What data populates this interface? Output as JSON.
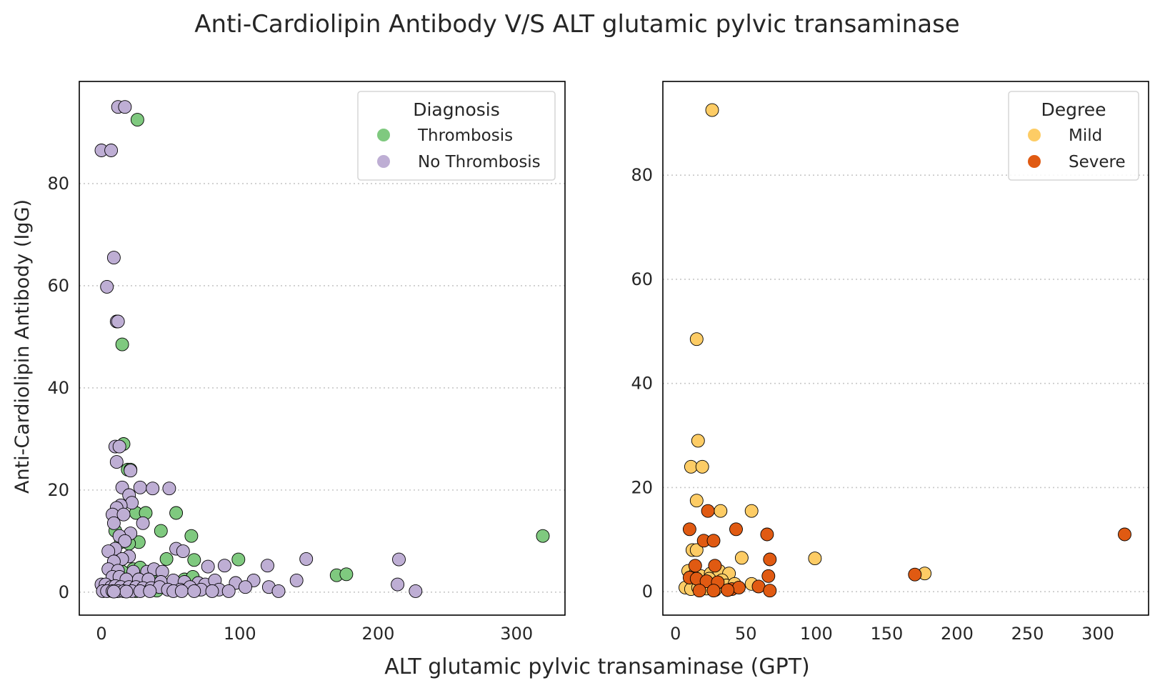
{
  "figure": {
    "title": "Anti-Cardiolipin Antibody V/S ALT glutamic pylvic transaminase",
    "xlabel": "ALT glutamic pylvic transaminase (GPT)",
    "ylabel": "Anti-Cardiolipin Antibody (IgG)"
  },
  "chart_data": [
    {
      "type": "scatter",
      "title": "",
      "xlabel": "ALT glutamic pylvic transaminase (GPT)",
      "ylabel": "Anti-Cardiolipin Antibody (IgG)",
      "xlim": [
        -16,
        335
      ],
      "ylim": [
        -4.5,
        100
      ],
      "xticks": [
        0,
        100,
        200,
        300
      ],
      "yticks": [
        0,
        20,
        40,
        60,
        80
      ],
      "grid": "y-dotted",
      "legend": {
        "title": "Diagnosis",
        "placement": "top-right"
      },
      "series": [
        {
          "name": "Thrombosis",
          "color": "#7fc97f",
          "points": [
            [
              26,
              92.5
            ],
            [
              15,
              48.5
            ],
            [
              16,
              29
            ],
            [
              19,
              24
            ],
            [
              10,
              12
            ],
            [
              21,
              24
            ],
            [
              25,
              15.5
            ],
            [
              32,
              15.5
            ],
            [
              54,
              15.5
            ],
            [
              43,
              12
            ],
            [
              65,
              11
            ],
            [
              27,
              9.8
            ],
            [
              14,
              9.8
            ],
            [
              20,
              9.5
            ],
            [
              47,
              6.5
            ],
            [
              67,
              6.3
            ],
            [
              99,
              6.4
            ],
            [
              12,
              5.2
            ],
            [
              23,
              4.5
            ],
            [
              28,
              4.8
            ],
            [
              170,
              3.3
            ],
            [
              177,
              3.5
            ],
            [
              319,
              11
            ],
            [
              15,
              4.0
            ],
            [
              35,
              3.3
            ],
            [
              30,
              2.5
            ],
            [
              60,
              2.5
            ],
            [
              66,
              3.0
            ],
            [
              45,
              1.5
            ],
            [
              52,
              1.5
            ],
            [
              20,
              0.5
            ],
            [
              40,
              0.3
            ],
            [
              55,
              0.5
            ],
            [
              70,
              0.5
            ],
            [
              10,
              0.2
            ],
            [
              25,
              0.2
            ],
            [
              18,
              1.0
            ],
            [
              33,
              1.0
            ]
          ]
        },
        {
          "name": "No Thrombosis",
          "color": "#beaed4",
          "points": [
            [
              12,
              95
            ],
            [
              17,
              95
            ],
            [
              0,
              86.5
            ],
            [
              7,
              86.5
            ],
            [
              9,
              65.5
            ],
            [
              4,
              59.8
            ],
            [
              11,
              53
            ],
            [
              12,
              53
            ],
            [
              10,
              28.5
            ],
            [
              13,
              28.5
            ],
            [
              11,
              25.5
            ],
            [
              21,
              23.8
            ],
            [
              15,
              20.5
            ],
            [
              28,
              20.5
            ],
            [
              37,
              20.3
            ],
            [
              49,
              20.3
            ],
            [
              20,
              19
            ],
            [
              22,
              17.5
            ],
            [
              14,
              17
            ],
            [
              11,
              16.5
            ],
            [
              8,
              15.2
            ],
            [
              16,
              15.2
            ],
            [
              9,
              13.5
            ],
            [
              30,
              13.5
            ],
            [
              21,
              11.5
            ],
            [
              13,
              11
            ],
            [
              17,
              10
            ],
            [
              10,
              8.5
            ],
            [
              5,
              8.0
            ],
            [
              20,
              7.0
            ],
            [
              54,
              8.5
            ],
            [
              59,
              8.0
            ],
            [
              15,
              6.5
            ],
            [
              9,
              6.0
            ],
            [
              77,
              5.0
            ],
            [
              89,
              5.2
            ],
            [
              120,
              5.2
            ],
            [
              148,
              6.5
            ],
            [
              215,
              6.4
            ],
            [
              5,
              4.5
            ],
            [
              12,
              4.2
            ],
            [
              23,
              4.0
            ],
            [
              33,
              4.0
            ],
            [
              38,
              4.5
            ],
            [
              44,
              4.0
            ],
            [
              8,
              3.0
            ],
            [
              13,
              3.0
            ],
            [
              18,
              2.5
            ],
            [
              27,
              2.5
            ],
            [
              34,
              2.5
            ],
            [
              43,
              2.0
            ],
            [
              52,
              2.3
            ],
            [
              60,
              2.0
            ],
            [
              70,
              1.8
            ],
            [
              75,
              1.5
            ],
            [
              82,
              2.3
            ],
            [
              97,
              1.8
            ],
            [
              110,
              2.3
            ],
            [
              141,
              2.3
            ],
            [
              0,
              1.5
            ],
            [
              3,
              1.5
            ],
            [
              7,
              1.0
            ],
            [
              10,
              1.2
            ],
            [
              14,
              1.0
            ],
            [
              20,
              1.0
            ],
            [
              25,
              1.0
            ],
            [
              30,
              0.8
            ],
            [
              36,
              0.8
            ],
            [
              42,
              1.0
            ],
            [
              48,
              0.5
            ],
            [
              57,
              0.5
            ],
            [
              64,
              1.0
            ],
            [
              72,
              0.5
            ],
            [
              85,
              0.5
            ],
            [
              92,
              0.2
            ],
            [
              104,
              1.0
            ],
            [
              121,
              1.0
            ],
            [
              128,
              0.2
            ],
            [
              214,
              1.5
            ],
            [
              227,
              0.2
            ],
            [
              1,
              0.2
            ],
            [
              4,
              0.2
            ],
            [
              8,
              0.2
            ],
            [
              12,
              0.2
            ],
            [
              16,
              0.2
            ],
            [
              22,
              0.2
            ],
            [
              28,
              0.2
            ],
            [
              35,
              0.2
            ],
            [
              52,
              0.2
            ],
            [
              58,
              0.2
            ],
            [
              67,
              0.2
            ],
            [
              80,
              0.2
            ],
            [
              18,
              0.1
            ],
            [
              9,
              0.1
            ]
          ]
        }
      ]
    },
    {
      "type": "scatter",
      "title": "",
      "xlabel": "",
      "ylabel": "",
      "xlim": [
        -9,
        336
      ],
      "ylim": [
        -4.5,
        98
      ],
      "xticks": [
        0,
        50,
        100,
        150,
        200,
        250,
        300
      ],
      "yticks": [
        0,
        20,
        40,
        60,
        80
      ],
      "grid": "y-dotted",
      "legend": {
        "title": "Degree",
        "placement": "top-right"
      },
      "series": [
        {
          "name": "Mild",
          "color": "#fdcc65",
          "points": [
            [
              26,
              92.5
            ],
            [
              15,
              48.5
            ],
            [
              16,
              29
            ],
            [
              11,
              24
            ],
            [
              19,
              24
            ],
            [
              15,
              17.5
            ],
            [
              32,
              15.5
            ],
            [
              54,
              15.5
            ],
            [
              12,
              8
            ],
            [
              15,
              8
            ],
            [
              47,
              6.5
            ],
            [
              99,
              6.4
            ],
            [
              177,
              3.5
            ],
            [
              9,
              4.0
            ],
            [
              14,
              3.5
            ],
            [
              18,
              3.0
            ],
            [
              25,
              3.5
            ],
            [
              31,
              4.0
            ],
            [
              38,
              3.5
            ],
            [
              24,
              2.5
            ],
            [
              33,
              2.2
            ],
            [
              13,
              1.5
            ],
            [
              20,
              1.2
            ],
            [
              36,
              1.2
            ],
            [
              42,
              1.5
            ],
            [
              54,
              1.5
            ],
            [
              7,
              0.8
            ],
            [
              11,
              0.5
            ],
            [
              16,
              0.8
            ],
            [
              22,
              0.6
            ],
            [
              28,
              0.3
            ]
          ]
        },
        {
          "name": "Severe",
          "color": "#e05a12",
          "points": [
            [
              319,
              11
            ],
            [
              170,
              3.3
            ],
            [
              10,
              12
            ],
            [
              23,
              15.5
            ],
            [
              43,
              12
            ],
            [
              65,
              11
            ],
            [
              20,
              9.8
            ],
            [
              27,
              9.8
            ],
            [
              14,
              5
            ],
            [
              28,
              5
            ],
            [
              67,
              6.2
            ],
            [
              66,
              3.0
            ],
            [
              10,
              2.7
            ],
            [
              15,
              2.5
            ],
            [
              22,
              2.0
            ],
            [
              30,
              1.8
            ],
            [
              40,
              0.5
            ],
            [
              45,
              0.8
            ],
            [
              59,
              1.0
            ],
            [
              67,
              0.2
            ],
            [
              17,
              0.2
            ],
            [
              27,
              0.2
            ],
            [
              37,
              0.3
            ]
          ]
        }
      ]
    }
  ]
}
